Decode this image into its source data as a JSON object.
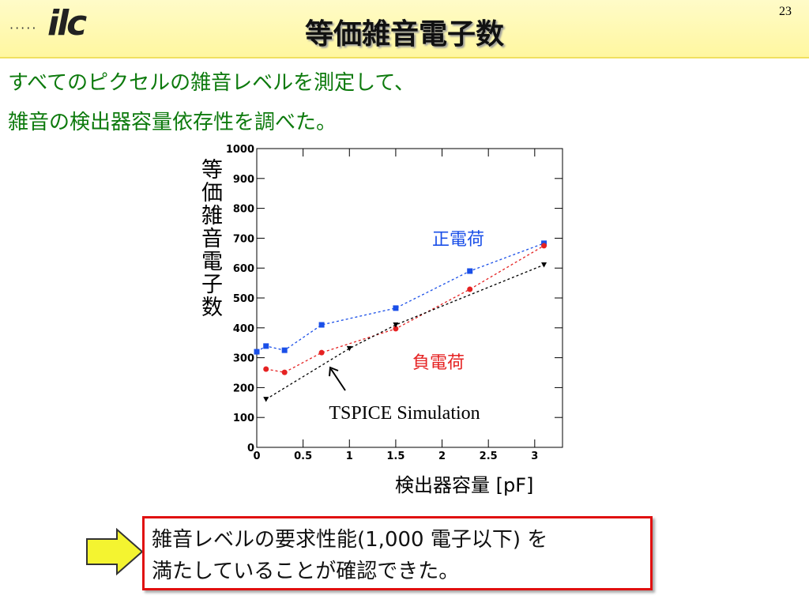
{
  "page_number": "23",
  "logo": "ilc",
  "title": "等価雑音電子数",
  "intro": [
    "すべてのピクセルの雑音レベルを測定して、",
    "雑音の検出器容量依存性を調べた。"
  ],
  "chart_data": {
    "type": "line",
    "x_label": "検出器容量 [pF]",
    "y_label": "等価雑音電子数",
    "xlim": [
      0,
      3.3
    ],
    "ylim": [
      0,
      1000
    ],
    "xticks": [
      0,
      0.5,
      1,
      1.5,
      2,
      2.5,
      3
    ],
    "yticks": [
      0,
      100,
      200,
      300,
      400,
      500,
      600,
      700,
      800,
      900,
      1000
    ],
    "series": [
      {
        "name": "正電荷",
        "color": "#1a4fe8",
        "marker": "square",
        "x": [
          0,
          0.1,
          0.3,
          0.7,
          1.5,
          2.3,
          3.1
        ],
        "values": [
          320,
          339,
          325,
          410,
          466,
          590,
          683
        ]
      },
      {
        "name": "負電荷",
        "color": "#e52222",
        "marker": "circle",
        "x": [
          0.1,
          0.3,
          0.7,
          1.5,
          2.3,
          3.1
        ],
        "values": [
          262,
          251,
          317,
          397,
          529,
          675
        ]
      },
      {
        "name": "TSPICE Simulation",
        "color": "#000000",
        "marker": "triangle",
        "x": [
          0.1,
          1.0,
          1.5,
          3.1
        ],
        "values": [
          161,
          331,
          410,
          611
        ]
      }
    ]
  },
  "conclusion": [
    "雑音レベルの要求性能(1,000 電子以下) を",
    "満たしていることが確認できた。"
  ]
}
